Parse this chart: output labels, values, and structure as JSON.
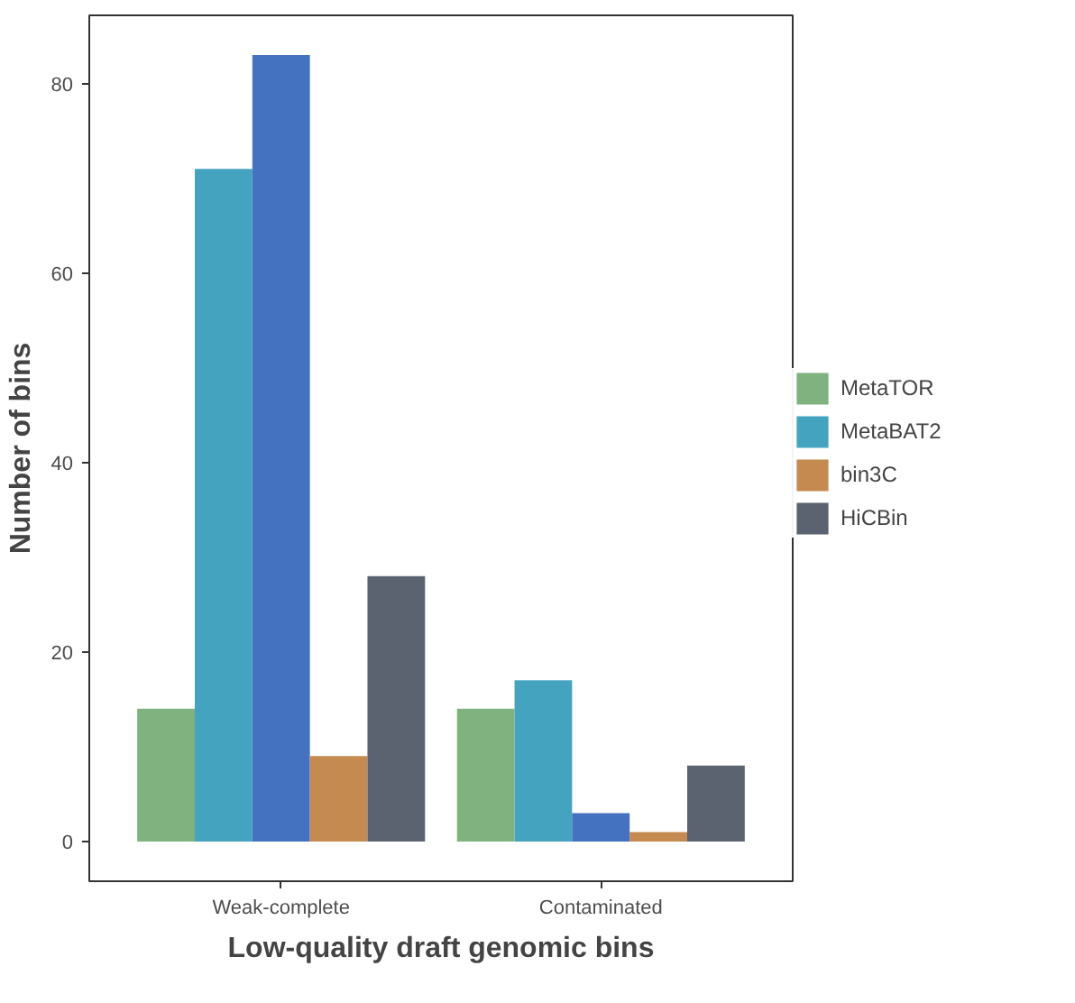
{
  "chart_data": {
    "type": "bar",
    "xlabel": "Low-quality draft genomic bins",
    "ylabel": "Number of bins",
    "categories": [
      "Weak-complete",
      "Contaminated"
    ],
    "series": [
      {
        "name": "MetaTOR",
        "color": "#7fb27f",
        "values": [
          14,
          14
        ]
      },
      {
        "name": "MetaBAT2",
        "color": "#44a3bf",
        "values": [
          71,
          17
        ]
      },
      {
        "color": "#4472c0",
        "values": [
          83,
          3
        ]
      },
      {
        "name": "bin3C",
        "color": "#c48a50",
        "values": [
          9,
          1
        ]
      },
      {
        "name": "HiCBin",
        "color": "#5b6270",
        "values": [
          28,
          8
        ]
      }
    ],
    "ylim": [
      -4.2,
      87.2
    ],
    "yticks": [
      0,
      20,
      40,
      60,
      80
    ],
    "grid": false,
    "legend": "right"
  }
}
